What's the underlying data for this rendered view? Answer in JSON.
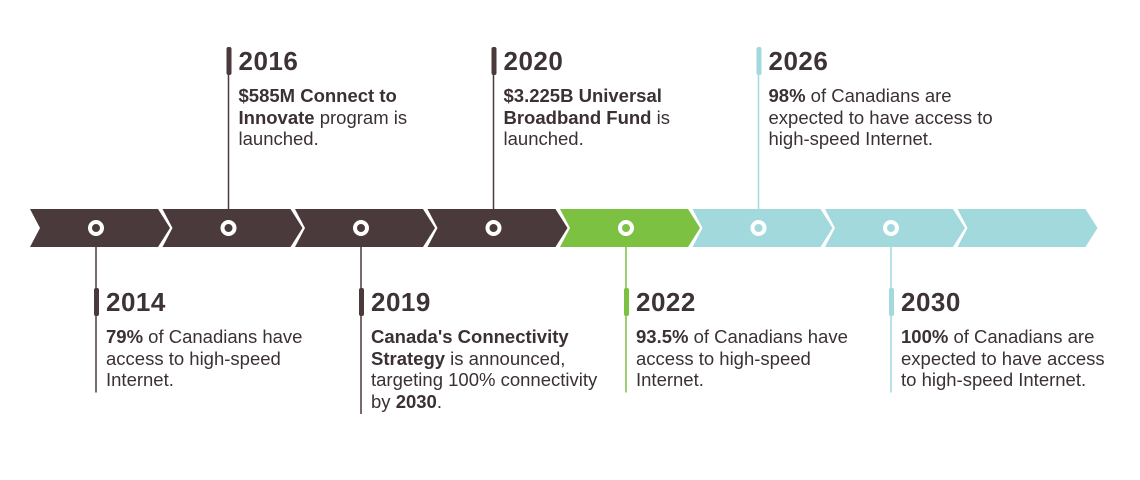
{
  "colors": {
    "past": "#4a3a3b",
    "current": "#7cc142",
    "future": "#a2d9dd",
    "text": "#3b3133"
  },
  "segments": [
    {
      "status": "past",
      "has_dot": true
    },
    {
      "status": "past",
      "has_dot": true
    },
    {
      "status": "past",
      "has_dot": true
    },
    {
      "status": "past",
      "has_dot": true
    },
    {
      "status": "current",
      "has_dot": true
    },
    {
      "status": "future",
      "has_dot": true
    },
    {
      "status": "future",
      "has_dot": true
    },
    {
      "status": "future",
      "has_dot": false
    }
  ],
  "events": [
    {
      "segment": 0,
      "side": "below",
      "year": "2014",
      "bold": "79%",
      "text": " of Canadians have access to high-speed Internet."
    },
    {
      "segment": 1,
      "side": "above",
      "year": "2016",
      "bold": "$585M Connect to Innovate",
      "text": " program is launched."
    },
    {
      "segment": 2,
      "side": "below",
      "year": "2019",
      "bold": "Canada's Connectivity Strategy",
      "text": " is announced, targeting 100% connectivity by ",
      "bold_end": "2030",
      "text_end": "."
    },
    {
      "segment": 3,
      "side": "above",
      "year": "2020",
      "bold": "$3.225B Universal Broadband Fund",
      "text": " is launched."
    },
    {
      "segment": 4,
      "side": "below",
      "year": "2022",
      "bold": "93.5%",
      "text": " of Canadians have access to high-speed Internet."
    },
    {
      "segment": 5,
      "side": "above",
      "year": "2026",
      "bold": "98%",
      "text": " of Canadians are expected to have access to high-speed Internet."
    },
    {
      "segment": 6,
      "side": "below",
      "year": "2030",
      "bold": "100%",
      "text": " of Canadians are expected to have access to high-speed Internet."
    }
  ]
}
